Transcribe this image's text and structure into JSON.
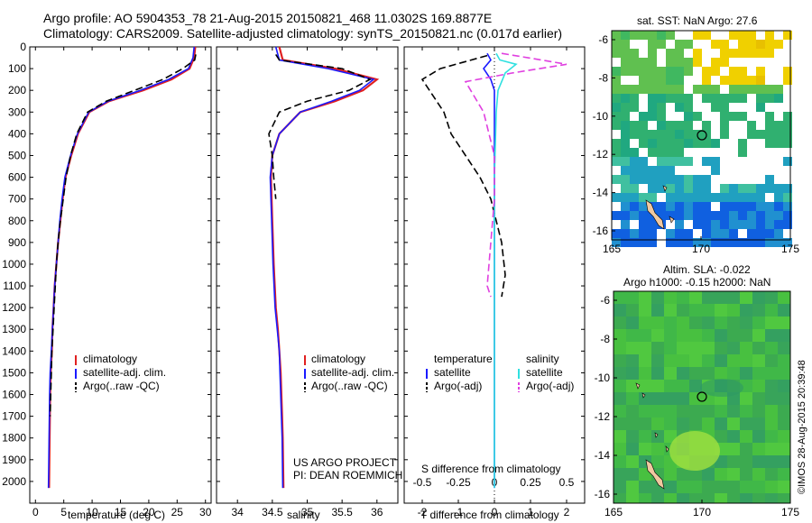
{
  "header": {
    "line1": "Argo profile: AO 5904353_78 21-Aug-2015 20150821_468 11.0302S 169.8877E",
    "line2": "Climatology: CARS2009. Satellite-adjusted climatology: synTS_20150821.nc (0.017d earlier)"
  },
  "colors": {
    "climatology": "#e02020",
    "satellite": "#1a1aff",
    "argo": "#000000",
    "satellite_s": "#30e0e0",
    "argo_s": "#e040e0"
  },
  "chart_data": [
    {
      "type": "line",
      "xlabel": "temperature (deg C)",
      "ylim": [
        2100,
        0
      ],
      "xlim": [
        -1,
        31
      ],
      "xticks": [
        0,
        5,
        10,
        15,
        20,
        25,
        30
      ],
      "yticks": [
        0,
        100,
        200,
        300,
        400,
        500,
        600,
        700,
        800,
        900,
        1000,
        1100,
        1200,
        1300,
        1400,
        1500,
        1600,
        1700,
        1800,
        1900,
        2000
      ],
      "legend": [
        "climatology",
        "satellite-adj. clim.",
        "Argo(..raw -QC)"
      ],
      "series": [
        {
          "name": "climatology",
          "x": [
            28.2,
            28.0,
            27.2,
            24.0,
            19.0,
            13.0,
            9.5,
            7.5,
            6.3,
            5.3,
            4.8,
            4.4,
            4.0,
            3.7,
            3.4,
            3.2,
            3.0,
            2.9,
            2.7,
            2.6,
            2.5,
            2.4
          ],
          "y": [
            0,
            50,
            100,
            150,
            200,
            250,
            300,
            400,
            500,
            600,
            700,
            800,
            900,
            1000,
            1100,
            1200,
            1300,
            1400,
            1500,
            1600,
            1800,
            2030
          ]
        },
        {
          "name": "satellite-adj. clim.",
          "x": [
            28.0,
            27.8,
            27.0,
            23.5,
            18.5,
            12.8,
            9.4,
            7.4,
            6.2,
            5.2,
            4.7,
            4.3,
            4.0,
            3.7,
            3.4,
            3.2,
            3.0,
            2.8,
            2.6,
            2.5,
            2.4,
            2.3
          ],
          "y": [
            0,
            50,
            100,
            150,
            200,
            250,
            300,
            400,
            500,
            600,
            700,
            800,
            900,
            1000,
            1100,
            1200,
            1300,
            1400,
            1500,
            1600,
            1800,
            2030
          ]
        },
        {
          "name": "Argo(..raw -QC)",
          "x": [
            28.3,
            28.1,
            26.0,
            22.5,
            17.5,
            12.5,
            9.2,
            7.3,
            6.2,
            5.4,
            4.9,
            4.4,
            4.0,
            3.7,
            3.5,
            3.3,
            3.1,
            2.9,
            2.8,
            2.7,
            2.6
          ],
          "y": [
            35,
            60,
            100,
            150,
            200,
            250,
            300,
            400,
            500,
            600,
            700,
            800,
            900,
            1000,
            1100,
            1200,
            1300,
            1400,
            1500,
            1600,
            1700
          ]
        }
      ]
    },
    {
      "type": "line",
      "xlabel": "salinity",
      "xlim": [
        33.7,
        36.3
      ],
      "ylim": [
        2100,
        0
      ],
      "xticks": [
        34,
        34.5,
        35,
        35.5,
        36
      ],
      "legend": [
        "climatology",
        "satellite-adj. clim.",
        "Argo(..raw -QC)"
      ],
      "series": [
        {
          "name": "climatology",
          "x": [
            34.6,
            34.65,
            35.4,
            36.0,
            35.8,
            35.4,
            34.9,
            34.6,
            34.5,
            34.48,
            34.5,
            34.52,
            34.55,
            34.58,
            34.6,
            34.62,
            34.63,
            34.64,
            34.65,
            34.66
          ],
          "y": [
            0,
            60,
            100,
            150,
            200,
            250,
            300,
            400,
            500,
            600,
            800,
            1000,
            1200,
            1300,
            1400,
            1500,
            1600,
            1700,
            1800,
            2030
          ]
        },
        {
          "name": "satellite-adj. clim.",
          "x": [
            34.55,
            34.6,
            35.3,
            35.95,
            35.75,
            35.35,
            34.9,
            34.6,
            34.5,
            34.47,
            34.49,
            34.51,
            34.54,
            34.57,
            34.6,
            34.61,
            34.62,
            34.63,
            34.64,
            34.65
          ],
          "y": [
            0,
            60,
            100,
            150,
            200,
            250,
            300,
            400,
            500,
            600,
            800,
            1000,
            1200,
            1300,
            1400,
            1500,
            1600,
            1700,
            1800,
            2030
          ]
        },
        {
          "name": "Argo(..raw -QC)",
          "x": [
            34.55,
            34.6,
            35.5,
            35.9,
            35.6,
            35.0,
            34.6,
            34.45,
            34.5,
            34.52,
            34.55
          ],
          "y": [
            35,
            60,
            100,
            150,
            200,
            250,
            300,
            400,
            500,
            600,
            700
          ]
        }
      ]
    },
    {
      "type": "line",
      "xlabel": "T difference from climatology",
      "xlabel_top": "S difference from climatology",
      "xlim": [
        -2.5,
        2.5
      ],
      "ylim": [
        2100,
        0
      ],
      "xticks": [
        -2,
        -1,
        0,
        1,
        2
      ],
      "xticks_top": [
        -0.5,
        -0.25,
        0,
        0.25,
        0.5
      ],
      "legend_left_title": "temperature",
      "legend_right_title": "salinity",
      "legend_left": [
        "satellite",
        "Argo(-adj)"
      ],
      "legend_right": [
        "satellite",
        "Argo(-adj)"
      ],
      "series": [
        {
          "name": "T satellite",
          "x": [
            -0.2,
            -0.1,
            -0.3,
            -0.1,
            0,
            0,
            0,
            0,
            0
          ],
          "y": [
            30,
            60,
            100,
            150,
            200,
            300,
            500,
            1000,
            2030
          ]
        },
        {
          "name": "T Argo(-adj)",
          "x": [
            -0.2,
            -1.5,
            -2.0,
            -1.8,
            -1.4,
            -1.2,
            -0.8,
            -0.4,
            -0.1,
            0.2,
            0.3,
            0.2
          ],
          "y": [
            40,
            100,
            150,
            200,
            300,
            400,
            500,
            600,
            700,
            900,
            1050,
            1150
          ]
        },
        {
          "name": "S satellite",
          "x": [
            0.05,
            0.15,
            0.6,
            0.3,
            0.1,
            0.05,
            0,
            0
          ],
          "y": [
            30,
            60,
            80,
            120,
            200,
            300,
            600,
            2030
          ]
        },
        {
          "name": "S Argo(-adj)",
          "x": [
            0.2,
            1.3,
            2.0,
            0.5,
            -0.8,
            -0.3,
            0,
            0,
            -0.1,
            -0.2,
            -0.1
          ],
          "y": [
            30,
            60,
            80,
            120,
            160,
            300,
            500,
            700,
            900,
            1100,
            1150
          ]
        }
      ]
    }
  ],
  "sst_map": {
    "title": "sat. SST: NaN Argo: 27.6",
    "xticks": [
      "165",
      "170",
      "175"
    ],
    "yticks": [
      "-6",
      "-8",
      "-10",
      "-12",
      "-14",
      "-16"
    ]
  },
  "sla_map": {
    "title1": "Altim. SLA: -0.022",
    "title2": "Argo h1000: -0.15 h2000: NaN",
    "xticks": [
      "165",
      "170",
      "175"
    ],
    "yticks": [
      "-6",
      "-8",
      "-10",
      "-12",
      "-14",
      "-16"
    ]
  },
  "credits": {
    "project": "US ARGO PROJECT",
    "pi": "PI: DEAN ROEMMICH",
    "stamp": "©IMOS 28-Aug-2015 20:39:48"
  }
}
